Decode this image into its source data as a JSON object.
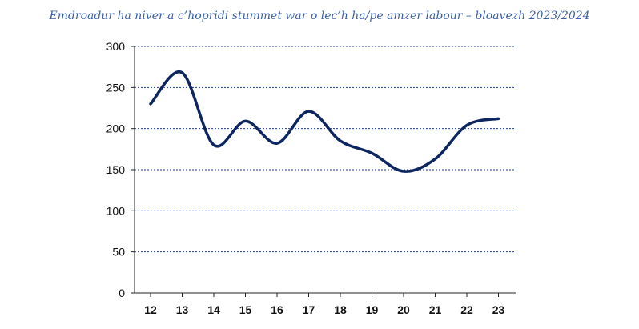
{
  "chart_data": {
    "type": "line",
    "title": "Emdroadur ha niver a c’hopridi stummet war o lec’h ha/pe amzer labour – bloavezh 2023/2024",
    "xlabel": "",
    "ylabel": "",
    "categories": [
      "12",
      "13",
      "14",
      "15",
      "16",
      "17",
      "18",
      "19",
      "20",
      "21",
      "22",
      "23"
    ],
    "series": [
      {
        "values": [
          230,
          268,
          180,
          209,
          182,
          221,
          185,
          170,
          148,
          163,
          204,
          212
        ]
      }
    ],
    "ylim": [
      0,
      300
    ],
    "yticks": [
      "0",
      "50",
      "100",
      "150",
      "200",
      "250",
      "300"
    ],
    "grid": "horizontal-dashed",
    "legend": "none",
    "colors": {
      "line": "#0d2660",
      "grid": "#1f3b8c",
      "axis": "#222222",
      "title": "#3a5fa8"
    }
  }
}
